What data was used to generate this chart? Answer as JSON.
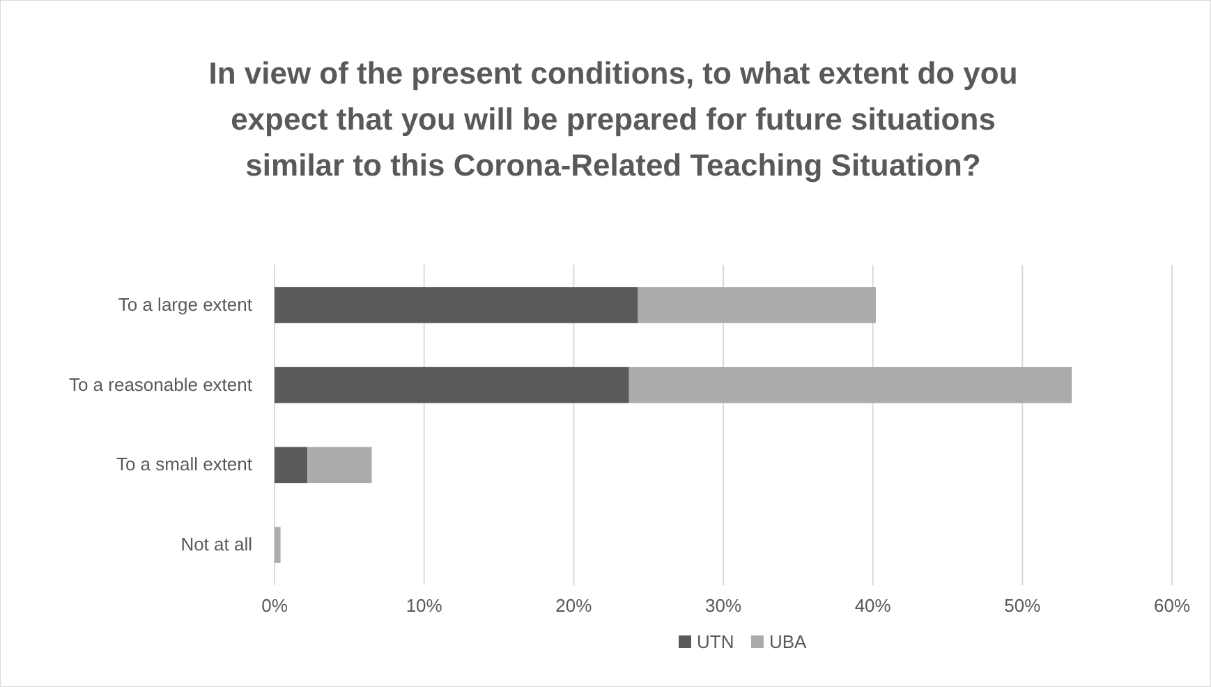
{
  "chart_data": {
    "type": "bar",
    "orientation": "horizontal",
    "stacked": true,
    "title": "In view of the present conditions, to what extent do you expect that you will be prepared for future situations similar to this Corona-Related Teaching Situation?",
    "categories": [
      "To a large extent",
      "To a reasonable extent",
      "To a small extent",
      "Not at all"
    ],
    "series": [
      {
        "name": "UTN",
        "color": "#5a5a5a",
        "values": [
          24.3,
          23.7,
          2.2,
          0
        ]
      },
      {
        "name": "UBA",
        "color": "#ababab",
        "values": [
          15.9,
          29.6,
          4.3,
          0.4
        ]
      }
    ],
    "xlim": [
      0,
      60
    ],
    "xticks": [
      {
        "value": 0,
        "label": "0%"
      },
      {
        "value": 10,
        "label": "10%"
      },
      {
        "value": 20,
        "label": "20%"
      },
      {
        "value": 30,
        "label": "30%"
      },
      {
        "value": 40,
        "label": "40%"
      },
      {
        "value": 50,
        "label": "50%"
      },
      {
        "value": 60,
        "label": "60%"
      }
    ],
    "grid": "x",
    "legend": "bottom"
  }
}
